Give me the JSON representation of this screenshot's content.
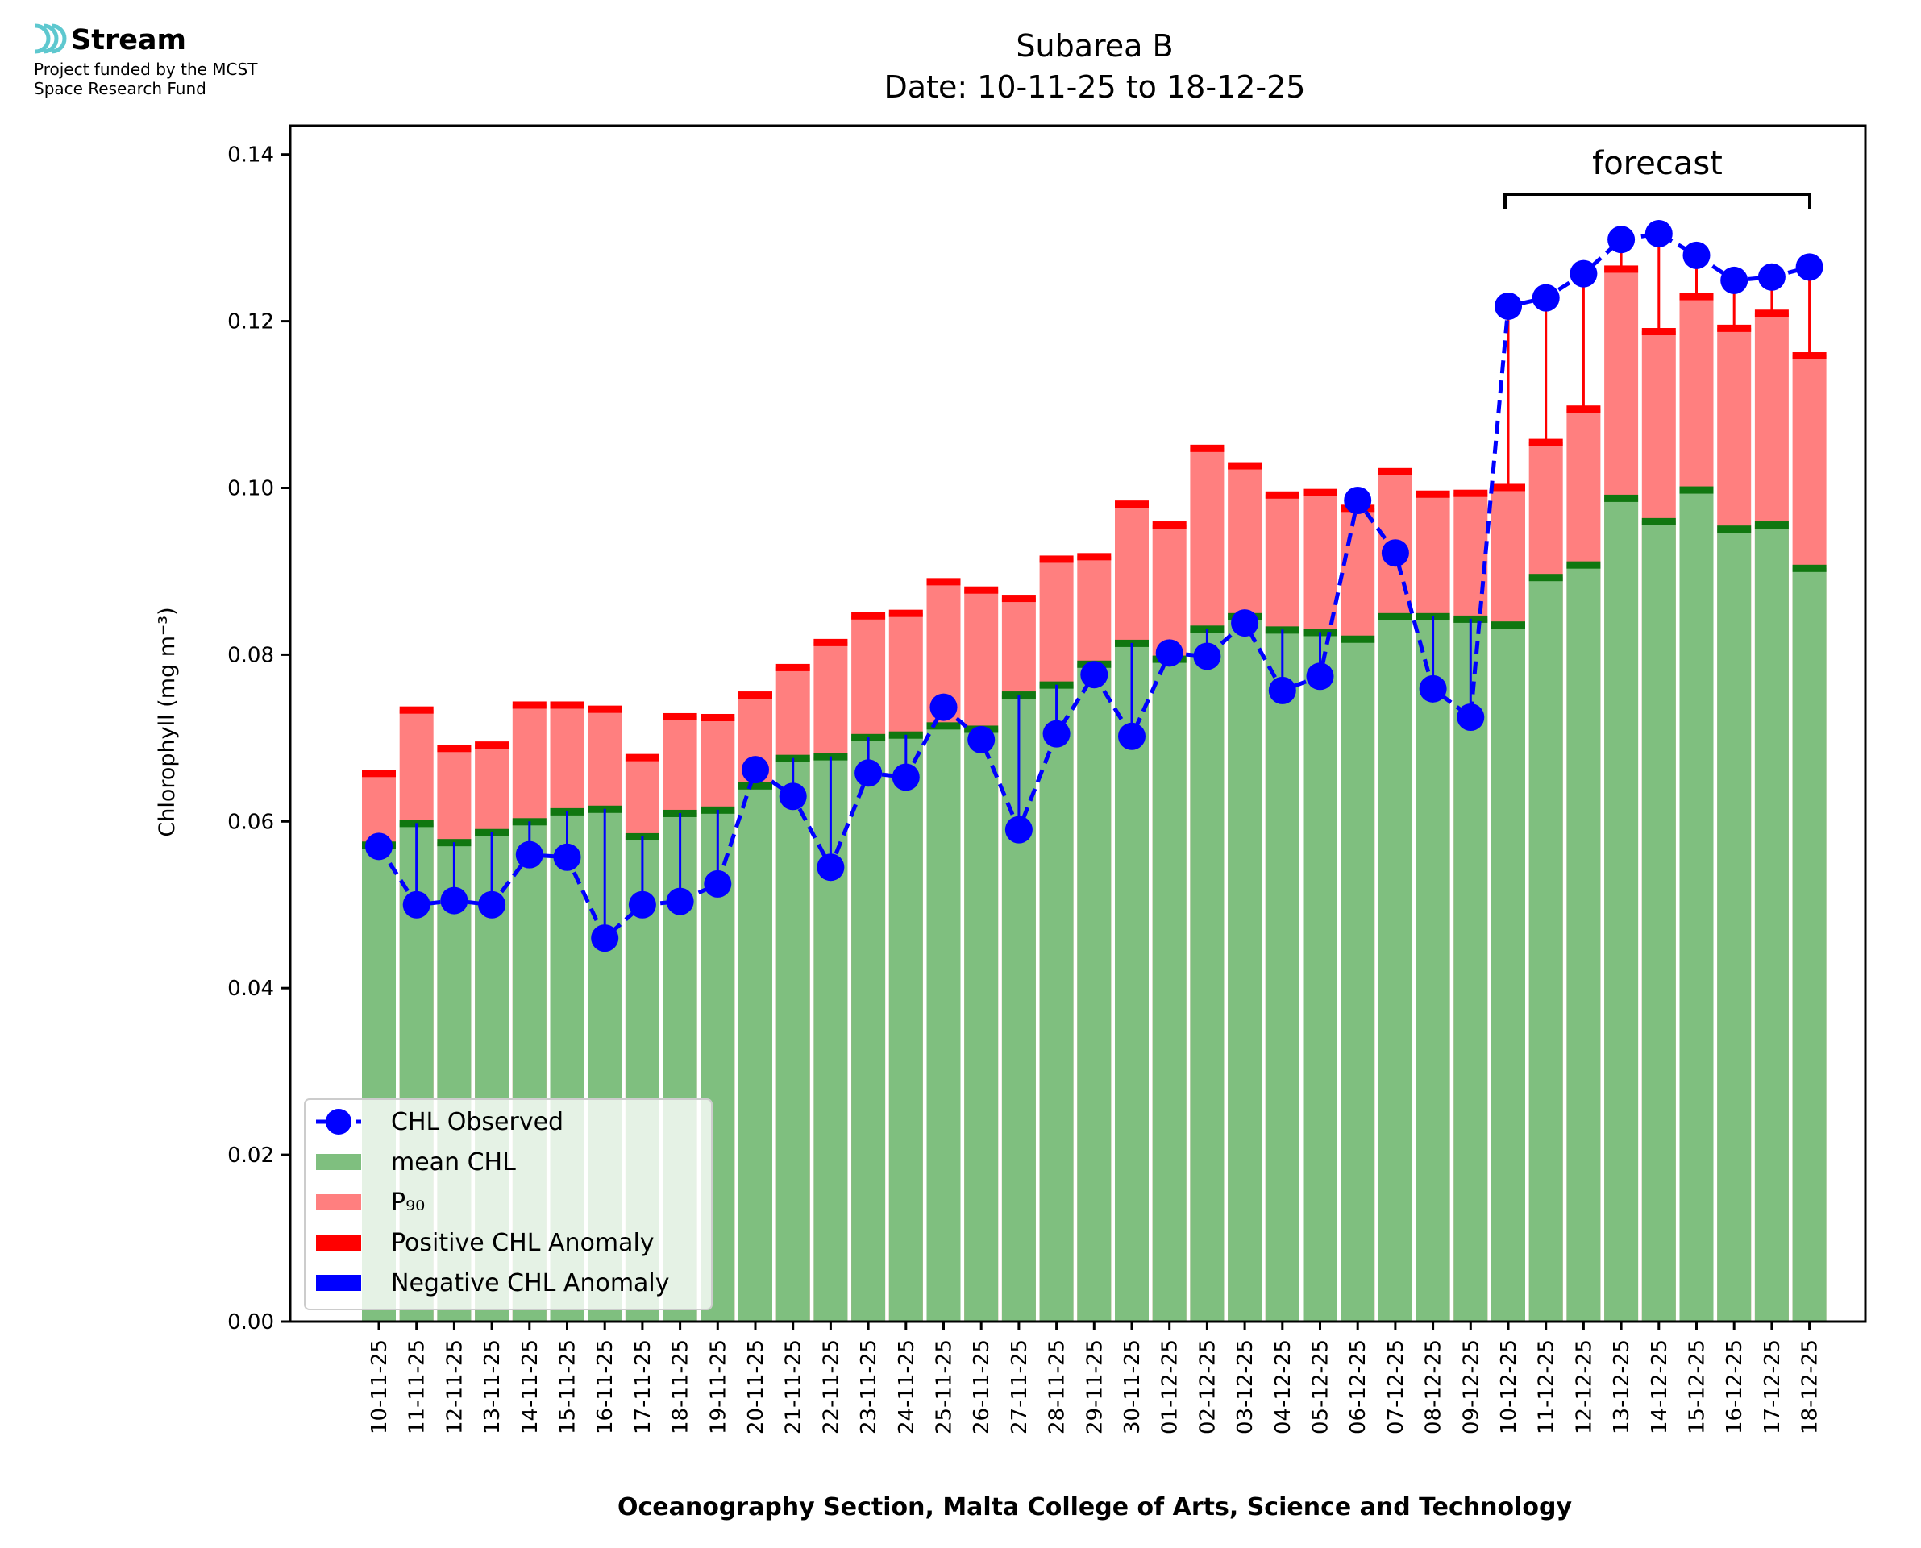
{
  "logo": {
    "name": "Stream",
    "line1": "Project funded by the MCST",
    "line2": "Space Research Fund"
  },
  "chart_data": {
    "type": "bar",
    "title": "Subarea B",
    "subtitle": "Date: 10-11-25 to 18-12-25",
    "xlabel": "Oceanography Section, Malta College of Arts, Science and Technology",
    "ylabel": "Chlorophyll (mg m⁻³)",
    "ylim": [
      0,
      0.1435
    ],
    "yticks": [
      "0.00",
      "0.02",
      "0.04",
      "0.06",
      "0.08",
      "0.10",
      "0.12",
      "0.14"
    ],
    "grid": false,
    "legend_position": "bottom-left",
    "categories": [
      "10-11-25",
      "11-11-25",
      "12-11-25",
      "13-11-25",
      "14-11-25",
      "15-11-25",
      "16-11-25",
      "17-11-25",
      "18-11-25",
      "19-11-25",
      "20-11-25",
      "21-11-25",
      "22-11-25",
      "23-11-25",
      "24-11-25",
      "25-11-25",
      "26-11-25",
      "27-11-25",
      "28-11-25",
      "29-11-25",
      "30-11-25",
      "01-12-25",
      "02-12-25",
      "03-12-25",
      "04-12-25",
      "05-12-25",
      "06-12-25",
      "07-12-25",
      "08-12-25",
      "09-12-25",
      "10-12-25",
      "11-12-25",
      "12-12-25",
      "13-12-25",
      "14-12-25",
      "15-12-25",
      "16-12-25",
      "17-12-25",
      "18-12-25"
    ],
    "series": [
      {
        "name": "CHL Observed",
        "color": "#0000ff",
        "values": [
          0.057,
          0.05,
          0.0505,
          0.05,
          0.056,
          0.0557,
          0.046,
          0.05,
          0.0504,
          0.0525,
          0.0662,
          0.063,
          0.0545,
          0.0658,
          0.0653,
          0.0737,
          0.0698,
          0.059,
          0.0705,
          0.0776,
          0.0702,
          0.0802,
          0.0798,
          0.0838,
          0.0757,
          0.0774,
          0.0985,
          0.0922,
          0.0759,
          0.0725,
          0.1218,
          0.1228,
          0.1257,
          0.1298,
          0.1305,
          0.1279,
          0.1249,
          0.1253,
          0.1265
        ]
      },
      {
        "name": "mean CHL",
        "color": "#7fbf7f",
        "values": [
          0.0572,
          0.0598,
          0.0575,
          0.0587,
          0.06,
          0.0612,
          0.0615,
          0.0582,
          0.061,
          0.0614,
          0.0643,
          0.0676,
          0.0678,
          0.0701,
          0.0704,
          0.0715,
          0.0711,
          0.0752,
          0.0764,
          0.0789,
          0.0814,
          0.0795,
          0.0831,
          0.0846,
          0.083,
          0.0827,
          0.0819,
          0.0846,
          0.0846,
          0.0843,
          0.0836,
          0.0893,
          0.0908,
          0.0988,
          0.096,
          0.0998,
          0.0951,
          0.0956,
          0.0904
        ]
      },
      {
        "name": "P₉₀",
        "color": "#ff7f7f",
        "values": [
          0.0658,
          0.0734,
          0.0688,
          0.0692,
          0.074,
          0.074,
          0.0735,
          0.0677,
          0.0726,
          0.0725,
          0.0752,
          0.0785,
          0.0815,
          0.0847,
          0.085,
          0.0888,
          0.0878,
          0.0868,
          0.0915,
          0.0918,
          0.0981,
          0.0956,
          0.1048,
          0.1027,
          0.0992,
          0.0995,
          0.0976,
          0.102,
          0.0993,
          0.0994,
          0.1001,
          0.1055,
          0.1095,
          0.1263,
          0.1188,
          0.123,
          0.1192,
          0.121,
          0.1159
        ]
      }
    ],
    "legend": [
      {
        "label": "CHL Observed",
        "kind": "line-marker",
        "color": "#0000ff"
      },
      {
        "label": "mean CHL",
        "kind": "patch",
        "color": "#7fbf7f"
      },
      {
        "label": "P₉₀",
        "kind": "patch",
        "color": "#ff7f7f"
      },
      {
        "label": "Positive CHL Anomaly",
        "kind": "patch",
        "color": "#ff0000"
      },
      {
        "label": "Negative CHL Anomaly",
        "kind": "patch",
        "color": "#0000ff"
      }
    ],
    "annotation": {
      "label": "forecast",
      "from_category": "10-12-25",
      "to_category": "18-12-25"
    },
    "colors": {
      "mean_edge": "#107710",
      "p90_edge": "#ff0000",
      "positive_anomaly": "#ff0000",
      "negative_anomaly": "#0000ff"
    }
  }
}
